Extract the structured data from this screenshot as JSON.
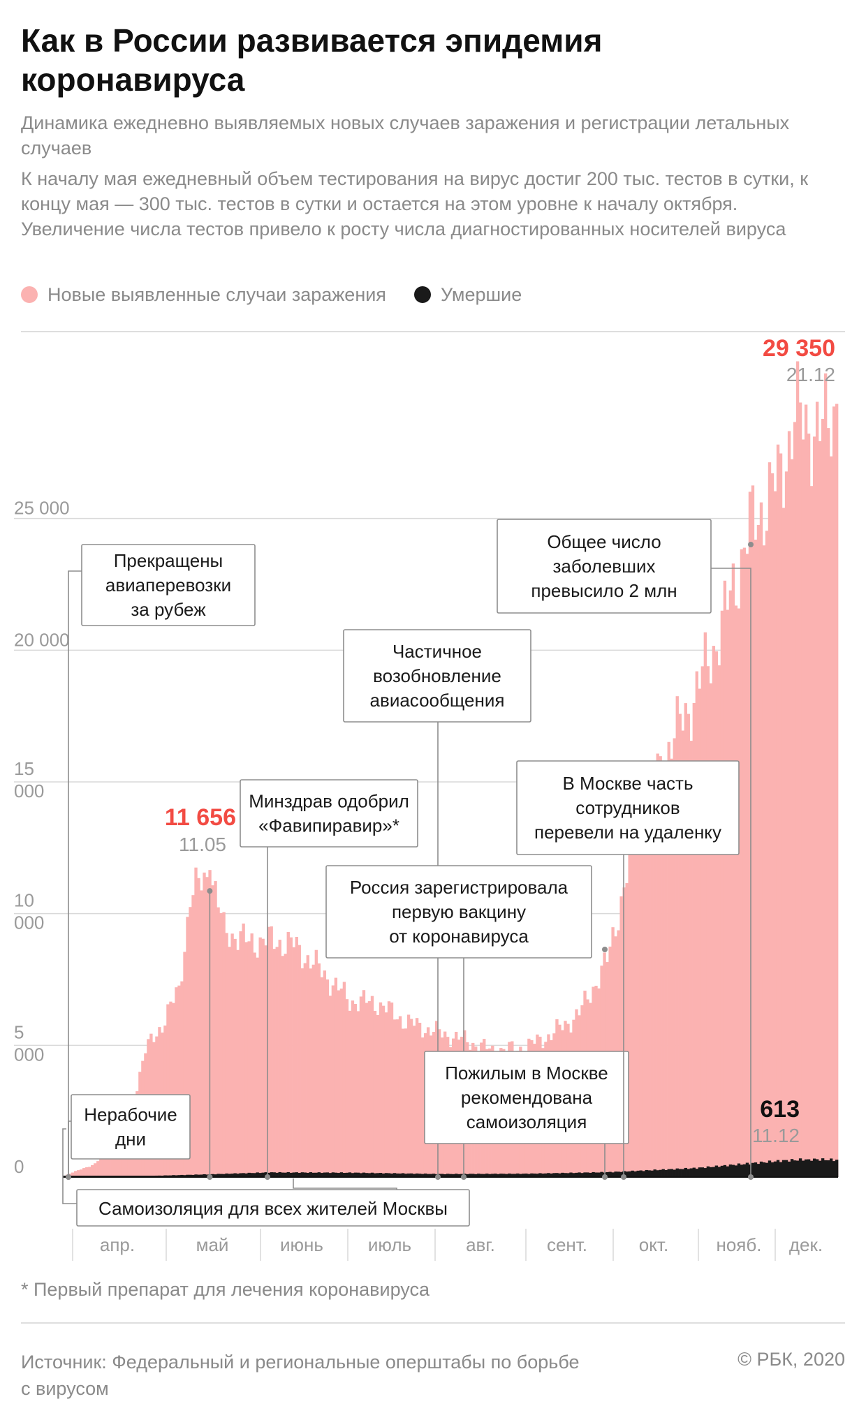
{
  "title": "Как в России развивается эпидемия коронавируса",
  "subtitle": "Динамика ежедневно выявляемых новых случаев заражения и регистрации летальных случаев",
  "lede": "К началу мая ежедневный объем тестирования на вирус достиг 200 тыс. тестов в сутки, к концу мая — 300 тыс. тестов в сутки и остается на этом уровне к началу октября. Увеличение числа тестов привело к росту числа диагностированных носителей вируса",
  "legend": [
    {
      "label": "Новые выявленные случаи заражения",
      "color": "#fbb2b1"
    },
    {
      "label": "Умершие",
      "color": "#1a1a1a"
    }
  ],
  "footnote": "* Первый препарат для лечения коронавируса",
  "source": "Источник: Федеральный и региональные оперштабы по борьбе с вирусом",
  "credit": "© РБК, 2020",
  "colors": {
    "cases": "#fbb2b1",
    "deaths": "#1a1a1a",
    "highlight": "#f24b43",
    "grid": "#d9d9d9",
    "muted": "#9a9a9a"
  },
  "chart_data": {
    "type": "bar",
    "xlabel": "",
    "ylabel": "",
    "ylim": [
      0,
      30000
    ],
    "grid": true,
    "legend_position": "top-left",
    "y_ticks": [
      {
        "value": 0,
        "lines": [
          "0"
        ]
      },
      {
        "value": 5000,
        "lines": [
          "5",
          "000"
        ]
      },
      {
        "value": 10000,
        "lines": [
          "10",
          "000"
        ]
      },
      {
        "value": 15000,
        "lines": [
          "15",
          "000"
        ]
      },
      {
        "value": 20000,
        "lines": [
          "20 000"
        ]
      },
      {
        "value": 25000,
        "lines": [
          "25 000"
        ]
      }
    ],
    "months": [
      "апр.",
      "май",
      "июнь",
      "июль",
      "авг.",
      "сент.",
      "окт.",
      "нояб.",
      "дек."
    ],
    "cases_anchors": [
      [
        "2020-03-20",
        50
      ],
      [
        "2020-03-31",
        500
      ],
      [
        "2020-04-06",
        1150
      ],
      [
        "2020-04-12",
        2200
      ],
      [
        "2020-04-18",
        4800
      ],
      [
        "2020-04-24",
        5800
      ],
      [
        "2020-04-30",
        7100
      ],
      [
        "2020-05-04",
        10600
      ],
      [
        "2020-05-11",
        11656
      ],
      [
        "2020-05-16",
        9400
      ],
      [
        "2020-05-25",
        8900
      ],
      [
        "2020-06-01",
        9000
      ],
      [
        "2020-06-10",
        8800
      ],
      [
        "2020-06-20",
        7800
      ],
      [
        "2020-06-30",
        6700
      ],
      [
        "2020-07-10",
        6600
      ],
      [
        "2020-07-20",
        5900
      ],
      [
        "2020-07-31",
        5500
      ],
      [
        "2020-08-10",
        5200
      ],
      [
        "2020-08-20",
        4800
      ],
      [
        "2020-08-31",
        4900
      ],
      [
        "2020-09-10",
        5400
      ],
      [
        "2020-09-20",
        6200
      ],
      [
        "2020-09-30",
        8200
      ],
      [
        "2020-10-10",
        12800
      ],
      [
        "2020-10-20",
        15900
      ],
      [
        "2020-10-31",
        18200
      ],
      [
        "2020-11-10",
        20900
      ],
      [
        "2020-11-20",
        24600
      ],
      [
        "2020-11-30",
        26400
      ],
      [
        "2020-12-06",
        28800
      ],
      [
        "2020-12-12",
        28500
      ],
      [
        "2020-12-16",
        28200
      ],
      [
        "2020-12-21",
        29350
      ]
    ],
    "deaths_anchors": [
      [
        "2020-03-20",
        0
      ],
      [
        "2020-04-15",
        30
      ],
      [
        "2020-05-11",
        95
      ],
      [
        "2020-06-01",
        160
      ],
      [
        "2020-07-01",
        150
      ],
      [
        "2020-08-01",
        105
      ],
      [
        "2020-09-01",
        115
      ],
      [
        "2020-10-01",
        170
      ],
      [
        "2020-11-01",
        310
      ],
      [
        "2020-12-01",
        560
      ],
      [
        "2020-12-11",
        613
      ],
      [
        "2020-12-21",
        590
      ]
    ],
    "peak_cases": {
      "value": "29 350",
      "date": "21.12"
    },
    "may_peak": {
      "value": "11 656",
      "date": "11.05"
    },
    "deaths_peak": {
      "value": "613",
      "date": "11.12"
    },
    "events": [
      {
        "id": "flights",
        "lines": [
          "Прекращены",
          "авиаперевозки",
          "за рубеж"
        ],
        "date": "2020-03-27"
      },
      {
        "id": "workdays",
        "lines": [
          "Нерабочие",
          "дни"
        ],
        "date": "2020-03-30"
      },
      {
        "id": "moscow",
        "lines": [
          "Самоизоляция для всех жителей Москвы"
        ],
        "date": "2020-03-30"
      },
      {
        "id": "favipiravir",
        "lines": [
          "Минздрав одобрил",
          "«Фавипиравир»*"
        ],
        "date": "2020-05-30"
      },
      {
        "id": "flights_resume",
        "lines": [
          "Частичное",
          "возобновление",
          "авиасообщения"
        ],
        "date": "2020-08-01"
      },
      {
        "id": "vaccine",
        "lines": [
          "Россия зарегистрировала",
          "первую вакцину",
          "от коронавируса"
        ],
        "date": "2020-08-11"
      },
      {
        "id": "elderly",
        "lines": [
          "Пожилым в Москве",
          "рекомендована",
          "самоизоляция"
        ],
        "date": "2020-09-28"
      },
      {
        "id": "remote",
        "lines": [
          "В Москве часть",
          "сотрудников",
          "перевели на удаленку"
        ],
        "date": "2020-10-05"
      },
      {
        "id": "twomillion",
        "lines": [
          "Общее число",
          "заболевших",
          "превысило 2 млн"
        ],
        "date": "2020-11-19"
      }
    ]
  }
}
